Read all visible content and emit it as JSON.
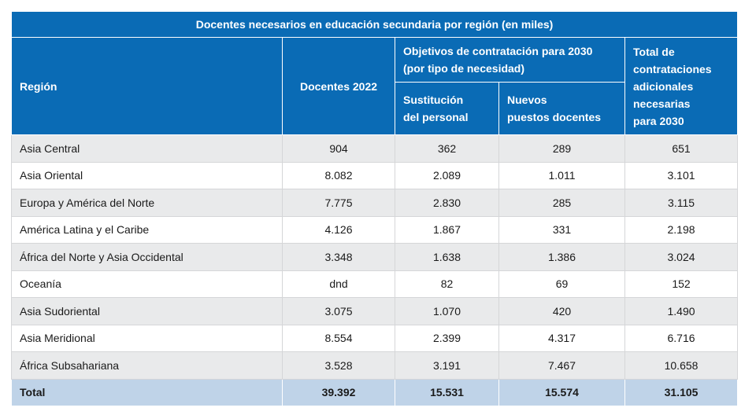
{
  "table": {
    "title": "Docentes necesarios en educación secundaria por región (en miles)",
    "headers": {
      "region": "Región",
      "teachers_2022": "Docentes 2022",
      "hiring_goals_line1": "Objetivos de contratación para 2030",
      "hiring_goals_line2": "(por tipo de necesidad)",
      "replacement_line1": "Sustitución",
      "replacement_line2": "del personal",
      "new_posts_line1": "Nuevos",
      "new_posts_line2": "puestos docentes",
      "total_line1": "Total de",
      "total_line2": "contrataciones",
      "total_line3": "adicionales",
      "total_line4": "necesarias",
      "total_line5": "para 2030"
    },
    "rows": [
      {
        "region": "Asia Central",
        "teachers_2022": "904",
        "replacement": "362",
        "new_posts": "289",
        "total": "651"
      },
      {
        "region": "Asia Oriental",
        "teachers_2022": "8.082",
        "replacement": "2.089",
        "new_posts": "1.011",
        "total": "3.101"
      },
      {
        "region": "Europa y América del Norte",
        "teachers_2022": "7.775",
        "replacement": "2.830",
        "new_posts": "285",
        "total": "3.115"
      },
      {
        "region": "América Latina y el Caribe",
        "teachers_2022": "4.126",
        "replacement": "1.867",
        "new_posts": "331",
        "total": "2.198"
      },
      {
        "region": "África del Norte y Asia Occidental",
        "teachers_2022": "3.348",
        "replacement": "1.638",
        "new_posts": "1.386",
        "total": "3.024"
      },
      {
        "region": "Oceanía",
        "teachers_2022": "dnd",
        "replacement": "82",
        "new_posts": "69",
        "total": "152"
      },
      {
        "region": "Asia Sudoriental",
        "teachers_2022": "3.075",
        "replacement": "1.070",
        "new_posts": "420",
        "total": "1.490"
      },
      {
        "region": "Asia Meridional",
        "teachers_2022": "8.554",
        "replacement": "2.399",
        "new_posts": "4.317",
        "total": "6.716"
      },
      {
        "region": "África Subsahariana",
        "teachers_2022": "3.528",
        "replacement": "3.191",
        "new_posts": "7.467",
        "total": "10.658"
      }
    ],
    "total_row": {
      "label": "Total",
      "teachers_2022": "39.392",
      "replacement": "15.531",
      "new_posts": "15.574",
      "total": "31.105"
    }
  }
}
